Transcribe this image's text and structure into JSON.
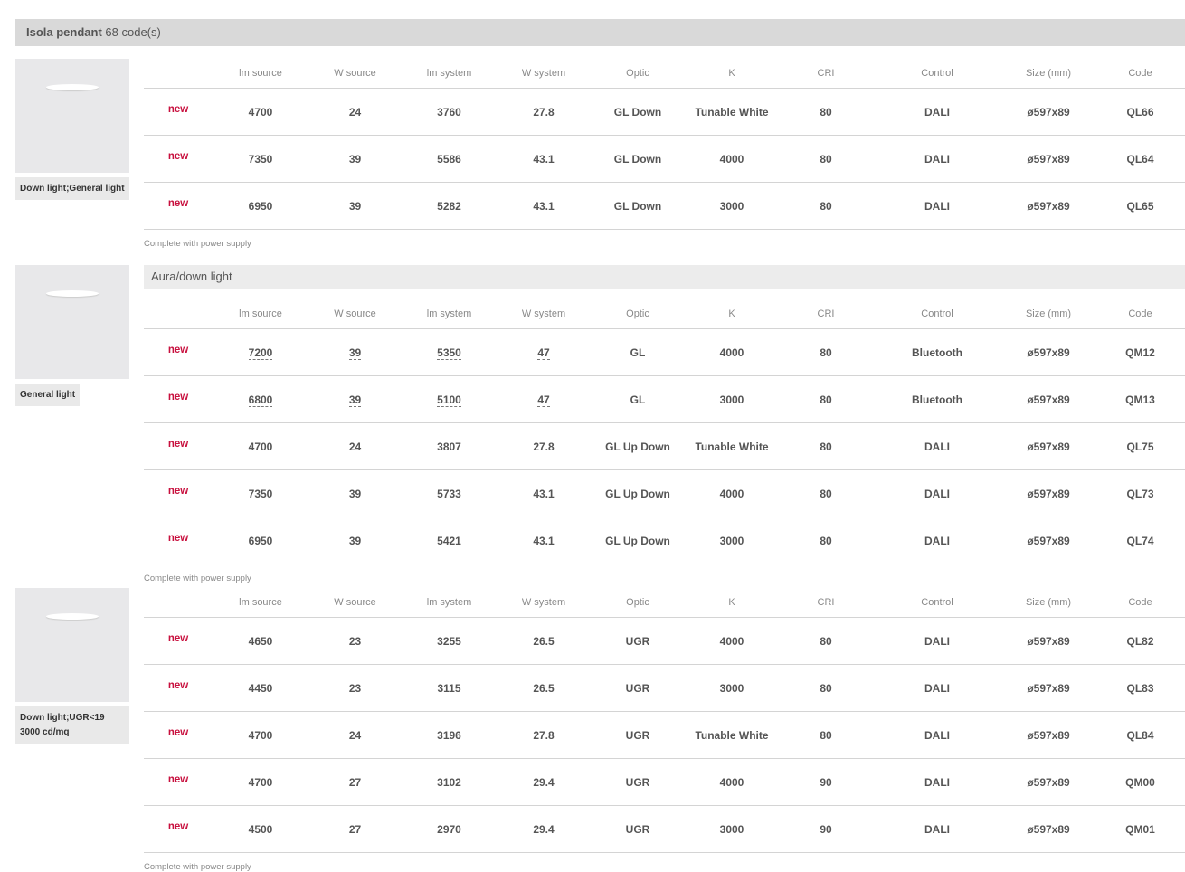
{
  "family": {
    "name": "Isola pendant",
    "count": "68 code(s)"
  },
  "columns": [
    "",
    "lm source",
    "W source",
    "lm system",
    "W system",
    "Optic",
    "K",
    "CRI",
    "Control",
    "Size (mm)",
    "Code"
  ],
  "groups": [
    {
      "tag": "Down light;General light",
      "subtitle": null,
      "note": "Complete with power supply",
      "rows": [
        {
          "badge": "new",
          "lm_source": "4700",
          "w_source": "24",
          "lm_system": "3760",
          "w_system": "27.8",
          "optic": "GL Down",
          "k": "Tunable White",
          "cri": "80",
          "control": "DALI",
          "size": "ø597x89",
          "code": "QL66",
          "dashed": false
        },
        {
          "badge": "new",
          "lm_source": "7350",
          "w_source": "39",
          "lm_system": "5586",
          "w_system": "43.1",
          "optic": "GL Down",
          "k": "4000",
          "cri": "80",
          "control": "DALI",
          "size": "ø597x89",
          "code": "QL64",
          "dashed": false
        },
        {
          "badge": "new",
          "lm_source": "6950",
          "w_source": "39",
          "lm_system": "5282",
          "w_system": "43.1",
          "optic": "GL Down",
          "k": "3000",
          "cri": "80",
          "control": "DALI",
          "size": "ø597x89",
          "code": "QL65",
          "dashed": false
        }
      ]
    },
    {
      "tag": "General light",
      "subtitle": "Aura/down light",
      "note": "Complete with power supply",
      "rows": [
        {
          "badge": "new",
          "lm_source": "7200",
          "w_source": "39",
          "lm_system": "5350",
          "w_system": "47",
          "optic": "GL",
          "k": "4000",
          "cri": "80",
          "control": "Bluetooth",
          "size": "ø597x89",
          "code": "QM12",
          "dashed": true
        },
        {
          "badge": "new",
          "lm_source": "6800",
          "w_source": "39",
          "lm_system": "5100",
          "w_system": "47",
          "optic": "GL",
          "k": "3000",
          "cri": "80",
          "control": "Bluetooth",
          "size": "ø597x89",
          "code": "QM13",
          "dashed": true
        },
        {
          "badge": "new",
          "lm_source": "4700",
          "w_source": "24",
          "lm_system": "3807",
          "w_system": "27.8",
          "optic": "GL Up Down",
          "k": "Tunable White",
          "cri": "80",
          "control": "DALI",
          "size": "ø597x89",
          "code": "QL75",
          "dashed": false
        },
        {
          "badge": "new",
          "lm_source": "7350",
          "w_source": "39",
          "lm_system": "5733",
          "w_system": "43.1",
          "optic": "GL Up Down",
          "k": "4000",
          "cri": "80",
          "control": "DALI",
          "size": "ø597x89",
          "code": "QL73",
          "dashed": false
        },
        {
          "badge": "new",
          "lm_source": "6950",
          "w_source": "39",
          "lm_system": "5421",
          "w_system": "43.1",
          "optic": "GL Up Down",
          "k": "3000",
          "cri": "80",
          "control": "DALI",
          "size": "ø597x89",
          "code": "QL74",
          "dashed": false
        }
      ]
    },
    {
      "tag": "Down light;UGR<19 3000 cd/mq",
      "subtitle": null,
      "note": "Complete with power supply",
      "rows": [
        {
          "badge": "new",
          "lm_source": "4650",
          "w_source": "23",
          "lm_system": "3255",
          "w_system": "26.5",
          "optic": "UGR",
          "k": "4000",
          "cri": "80",
          "control": "DALI",
          "size": "ø597x89",
          "code": "QL82",
          "dashed": false
        },
        {
          "badge": "new",
          "lm_source": "4450",
          "w_source": "23",
          "lm_system": "3115",
          "w_system": "26.5",
          "optic": "UGR",
          "k": "3000",
          "cri": "80",
          "control": "DALI",
          "size": "ø597x89",
          "code": "QL83",
          "dashed": false
        },
        {
          "badge": "new",
          "lm_source": "4700",
          "w_source": "24",
          "lm_system": "3196",
          "w_system": "27.8",
          "optic": "UGR",
          "k": "Tunable White",
          "cri": "80",
          "control": "DALI",
          "size": "ø597x89",
          "code": "QL84",
          "dashed": false
        },
        {
          "badge": "new",
          "lm_source": "4700",
          "w_source": "27",
          "lm_system": "3102",
          "w_system": "29.4",
          "optic": "UGR",
          "k": "4000",
          "cri": "90",
          "control": "DALI",
          "size": "ø597x89",
          "code": "QM00",
          "dashed": false
        },
        {
          "badge": "new",
          "lm_source": "4500",
          "w_source": "27",
          "lm_system": "2970",
          "w_system": "29.4",
          "optic": "UGR",
          "k": "3000",
          "cri": "90",
          "control": "DALI",
          "size": "ø597x89",
          "code": "QM01",
          "dashed": false
        }
      ]
    }
  ]
}
